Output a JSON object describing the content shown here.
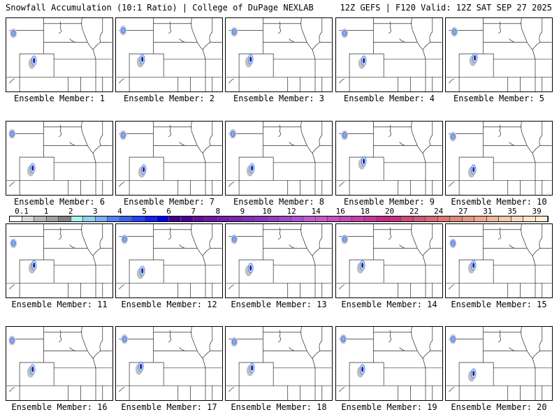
{
  "header": {
    "left": "Snowfall Accumulation (10:1 Ratio) | College of DuPage NEXLAB",
    "right": "12Z GEFS | F120 Valid: 12Z SAT SEP 27 2025"
  },
  "members": [
    "Ensemble Member: 1",
    "Ensemble Member: 2",
    "Ensemble Member: 3",
    "Ensemble Member: 4",
    "Ensemble Member: 5",
    "Ensemble Member: 6",
    "Ensemble Member: 7",
    "Ensemble Member: 8",
    "Ensemble Member: 9",
    "Ensemble Member: 10",
    "Ensemble Member: 11",
    "Ensemble Member: 12",
    "Ensemble Member: 13",
    "Ensemble Member: 14",
    "Ensemble Member: 15",
    "Ensemble Member: 16",
    "Ensemble Member: 17",
    "Ensemble Member: 18",
    "Ensemble Member: 19",
    "Ensemble Member: 20"
  ],
  "colorbar": {
    "labels": [
      "0.1",
      "1",
      "2",
      "3",
      "4",
      "5",
      "6",
      "7",
      "8",
      "9",
      "10",
      "12",
      "14",
      "16",
      "18",
      "20",
      "22",
      "24",
      "27",
      "31",
      "35",
      "39"
    ],
    "colors": [
      "#ffffff",
      "#d8d8d8",
      "#b8b8b8",
      "#a0a0a0",
      "#808080",
      "#a8f0ec",
      "#90d0f0",
      "#78b0f0",
      "#5880f0",
      "#4060f0",
      "#2840f8",
      "#1020f8",
      "#0000f0",
      "#400090",
      "#500098",
      "#6010a0",
      "#6818a8",
      "#7020b0",
      "#7828b0",
      "#8030b8",
      "#8838c0",
      "#9040c0",
      "#a048c8",
      "#b050d0",
      "#c058d0",
      "#c858c8",
      "#c850c0",
      "#c848b8",
      "#c840a8",
      "#c83898",
      "#c82888",
      "#c83080",
      "#d04878",
      "#d05878",
      "#d86878",
      "#e07878",
      "#e08878",
      "#e89880",
      "#f0a888",
      "#f0b898",
      "#f8c8a8",
      "#f8d8b8",
      "#fce4c8",
      "#fff0d8"
    ]
  }
}
